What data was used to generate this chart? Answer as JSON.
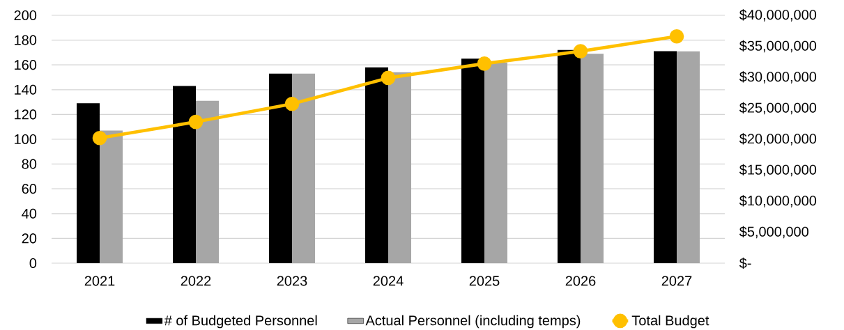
{
  "chart_data": {
    "type": "bar",
    "categories": [
      "2021",
      "2022",
      "2023",
      "2024",
      "2025",
      "2026",
      "2027"
    ],
    "series": [
      {
        "name": "# of Budgeted Personnel",
        "color": "#000000",
        "values": [
          129,
          143,
          153,
          158,
          165,
          172,
          171
        ]
      },
      {
        "name": "Actual Personnel (including temps)",
        "color": "#a6a6a6",
        "values": [
          107,
          131,
          153,
          154,
          162,
          169,
          171
        ]
      },
      {
        "name": "Total Budget",
        "type": "line",
        "axis": "y2",
        "color": "#ffc000",
        "marker": "circle",
        "values": [
          20200000,
          22800000,
          25700000,
          29900000,
          32200000,
          34200000,
          36600000
        ]
      }
    ],
    "ylim": [
      0,
      200
    ],
    "yticks": [
      0,
      20,
      40,
      60,
      80,
      100,
      120,
      140,
      160,
      180,
      200
    ],
    "y2lim": [
      0,
      40000000
    ],
    "y2ticks": [
      {
        "value": 0,
        "label": "$-"
      },
      {
        "value": 5000000,
        "label": "$5,000,000"
      },
      {
        "value": 10000000,
        "label": "$10,000,000"
      },
      {
        "value": 15000000,
        "label": "$15,000,000"
      },
      {
        "value": 20000000,
        "label": "$20,000,000"
      },
      {
        "value": 25000000,
        "label": "$25,000,000"
      },
      {
        "value": 30000000,
        "label": "$30,000,000"
      },
      {
        "value": 35000000,
        "label": "$35,000,000"
      },
      {
        "value": 40000000,
        "label": "$40,000,000"
      }
    ],
    "grid": "y",
    "legend": "bottom"
  }
}
